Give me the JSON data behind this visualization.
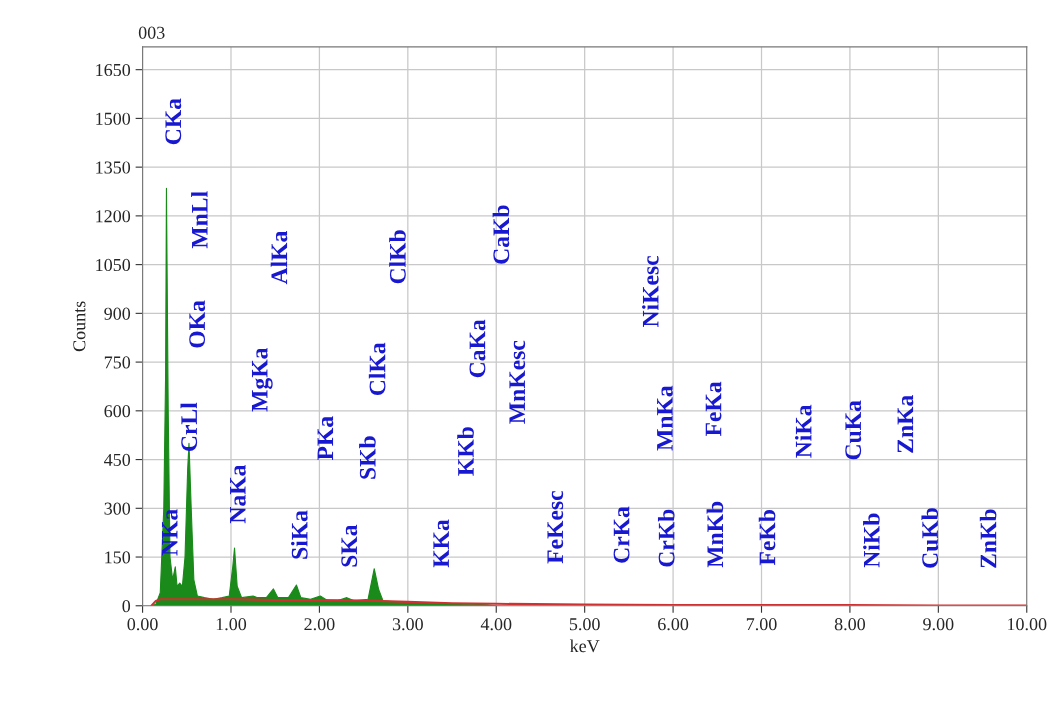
{
  "chart_data": {
    "type": "area",
    "title": "003",
    "xlabel": "keV",
    "ylabel": "Counts",
    "xlim": [
      0,
      10
    ],
    "ylim": [
      0,
      1720
    ],
    "xticks": [
      {
        "value": 0,
        "label": "0.00"
      },
      {
        "value": 1,
        "label": "1.00"
      },
      {
        "value": 2,
        "label": "2.00"
      },
      {
        "value": 3,
        "label": "3.00"
      },
      {
        "value": 4,
        "label": "4.00"
      },
      {
        "value": 5,
        "label": "5.00"
      },
      {
        "value": 6,
        "label": "6.00"
      },
      {
        "value": 7,
        "label": "7.00"
      },
      {
        "value": 8,
        "label": "8.00"
      },
      {
        "value": 9,
        "label": "9.00"
      },
      {
        "value": 10,
        "label": "10.00"
      }
    ],
    "yticks": [
      0,
      150,
      300,
      450,
      600,
      750,
      900,
      1050,
      1200,
      1350,
      1500,
      1650
    ],
    "grid": true,
    "legend": false,
    "series": [
      {
        "color": "#1a8a1a",
        "x": [
          0.1,
          0.15,
          0.2,
          0.24,
          0.26,
          0.27,
          0.29,
          0.31,
          0.34,
          0.37,
          0.39,
          0.42,
          0.45,
          0.48,
          0.51,
          0.525,
          0.55,
          0.58,
          0.62,
          0.7,
          0.8,
          0.9,
          0.98,
          1.02,
          1.04,
          1.07,
          1.12,
          1.25,
          1.3,
          1.4,
          1.48,
          1.53,
          1.65,
          1.74,
          1.79,
          1.9,
          2.01,
          2.1,
          2.2,
          2.31,
          2.4,
          2.55,
          2.62,
          2.67,
          2.72,
          2.85,
          3.0,
          3.3,
          3.7,
          3.9,
          4.0
        ],
        "values": [
          0,
          5,
          40,
          300,
          700,
          1285,
          600,
          150,
          80,
          120,
          60,
          70,
          60,
          150,
          420,
          500,
          300,
          80,
          30,
          25,
          20,
          25,
          30,
          120,
          178,
          60,
          25,
          30,
          25,
          25,
          52,
          25,
          25,
          64,
          25,
          20,
          30,
          15,
          15,
          25,
          15,
          20,
          114,
          50,
          15,
          12,
          10,
          8,
          5,
          3,
          0
        ]
      },
      {
        "type": "line",
        "color": "#d03030",
        "x": [
          0.1,
          0.15,
          0.2,
          0.4,
          0.7,
          1.0,
          1.5,
          2.0,
          2.5,
          3.0,
          3.5,
          4.0,
          5.0,
          6.0,
          7.0,
          8.0,
          9.0,
          10.0
        ],
        "values": [
          0,
          15,
          20,
          20,
          20,
          20,
          18,
          18,
          16,
          12,
          8,
          6,
          4,
          2,
          2,
          2,
          1,
          1
        ]
      }
    ],
    "annotations": [
      "NKa",
      "CKa",
      "CrLl",
      "OKa",
      "MnLl",
      "NaKa",
      "MgKa",
      "AlKa",
      "SiKa",
      "PKa",
      "SKa",
      "SKb",
      "ClKa",
      "ClKb",
      "KKa",
      "KKb",
      "CaKa",
      "CaKb",
      "MnKesc",
      "FeKesc",
      "CrKa",
      "CrKb",
      "MnKa",
      "NiKesc",
      "MnKb",
      "FeKa",
      "FeKb",
      "NiKa",
      "CuKa",
      "NiKb",
      "ZnKa",
      "CuKb",
      "ZnKb"
    ]
  }
}
